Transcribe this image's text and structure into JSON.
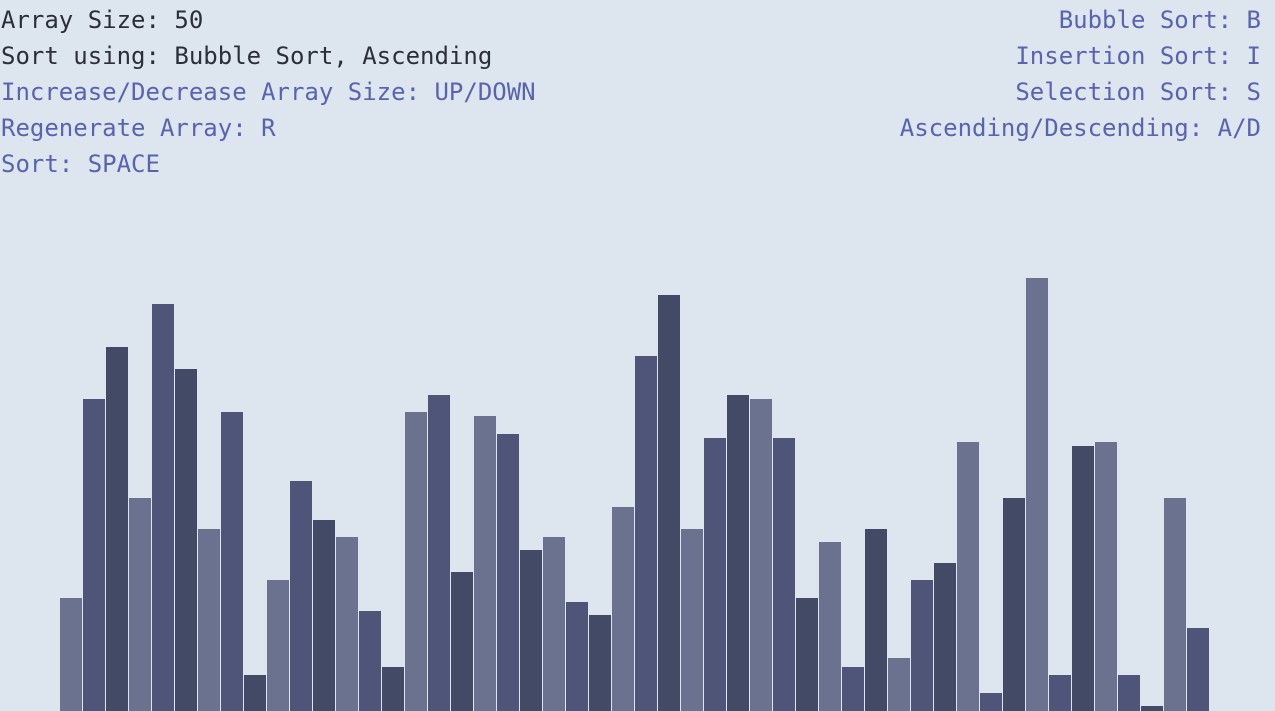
{
  "info": {
    "array_size": "Array Size: 50",
    "sort_using": "Sort using: Bubble Sort, Ascending"
  },
  "controls_left": [
    "Increase/Decrease Array Size: UP/DOWN",
    "Regenerate Array: R",
    "Sort: SPACE"
  ],
  "controls_right": [
    "Bubble Sort: B",
    "Insertion Sort: I",
    "Selection Sort: S",
    "Ascending/Descending: A/D"
  ],
  "colors": {
    "background": "#dde6ee",
    "info_text": "#2b2f3a",
    "help_text": "#5a63b0",
    "bar_shades": [
      "#6b728f",
      "#4e5578",
      "#434a65"
    ]
  },
  "array": {
    "size": 50,
    "values": [
      108,
      307,
      359,
      208,
      402,
      337,
      177,
      294,
      31,
      126,
      225,
      186,
      169,
      95,
      39,
      294,
      311,
      134,
      290,
      272,
      156,
      169,
      104,
      91,
      199,
      350,
      411,
      177,
      268,
      311,
      307,
      268,
      108,
      164,
      39,
      177,
      48,
      126,
      143,
      264,
      13,
      208,
      428,
      31,
      260,
      264,
      31,
      0,
      208,
      78
    ],
    "shade_index": [
      0,
      1,
      2,
      0,
      1,
      2,
      0,
      1,
      2,
      0,
      1,
      2,
      0,
      1,
      2,
      0,
      1,
      2,
      0,
      1,
      2,
      0,
      1,
      2,
      0,
      1,
      2,
      0,
      1,
      2,
      0,
      1,
      2,
      0,
      1,
      2,
      0,
      1,
      2,
      0,
      1,
      2,
      0,
      1,
      2,
      0,
      1,
      2,
      0,
      1
    ]
  }
}
